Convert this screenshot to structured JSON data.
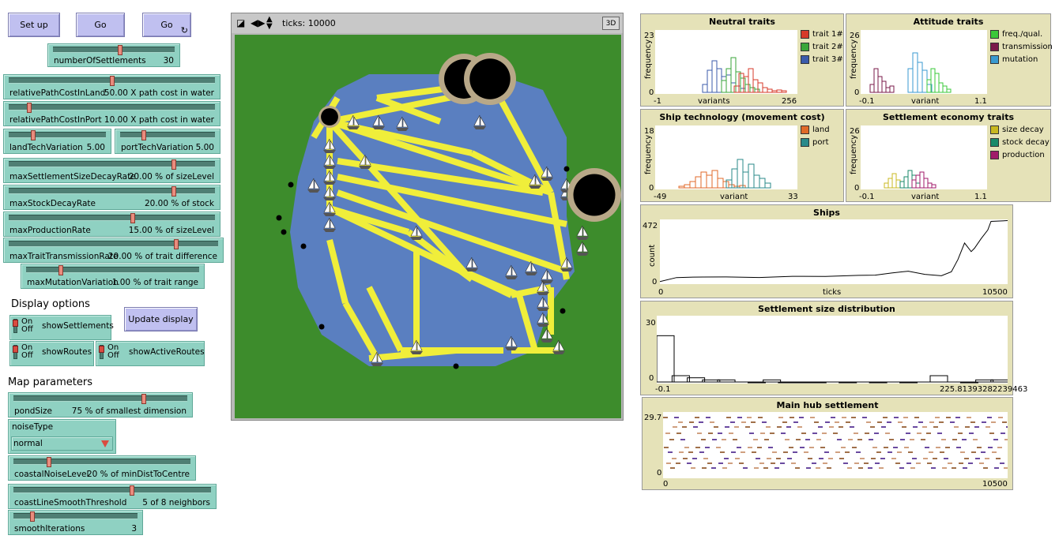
{
  "buttons": {
    "setup": "Set up",
    "go_once": "Go",
    "go_forever": "Go",
    "forever_glyph": "↻",
    "update_display": "Update display"
  },
  "sliders": [
    {
      "id": "numberOfSettlements",
      "label": "numberOfSettlements",
      "value": "30",
      "fraction": 0.55
    },
    {
      "id": "relativePathCostInLand",
      "label": "relativePathCostInLand",
      "value": "50.00 X path cost in water",
      "fraction": 0.5
    },
    {
      "id": "relativePathCostInPort",
      "label": "relativePathCostInPort",
      "value": "10.00 X path cost in water",
      "fraction": 0.1
    },
    {
      "id": "landTechVariation",
      "label": "landTechVariation",
      "value": "5.00",
      "fraction": 0.25
    },
    {
      "id": "portTechVariation",
      "label": "portTechVariation",
      "value": "5.00",
      "fraction": 0.25
    },
    {
      "id": "maxSettlementSizeDecayRate",
      "label": "maxSettlementSizeDecayRate",
      "value": "20.00 % of sizeLevel",
      "fraction": 0.8
    },
    {
      "id": "maxStockDecayRate",
      "label": "maxStockDecayRate",
      "value": "20.00 % of stock",
      "fraction": 0.8
    },
    {
      "id": "maxProductionRate",
      "label": "maxProductionRate",
      "value": "15.00 % of sizeLevel",
      "fraction": 0.6
    },
    {
      "id": "maxTraitTransmissionRate",
      "label": "maxTraitTransmissionRate",
      "value": "20.00 % of trait difference",
      "fraction": 0.8
    },
    {
      "id": "maxMutationVariation",
      "label": "maxMutationVariation",
      "value": "1.00 % of trait range",
      "fraction": 0.2
    },
    {
      "id": "pondSize",
      "label": "pondSize",
      "value": "75 % of smallest dimension",
      "fraction": 0.75
    },
    {
      "id": "coastalNoiseLevel",
      "label": "coastalNoiseLevel",
      "value": "20 % of minDistToCentre",
      "fraction": 0.2
    },
    {
      "id": "coastLineSmoothThreshold",
      "label": "coastLineSmoothThreshold",
      "value": "5 of 8 neighbors",
      "fraction": 0.6
    },
    {
      "id": "smoothIterations",
      "label": "smoothIterations",
      "value": "3",
      "fraction": 0.15
    }
  ],
  "sections": {
    "display_options": "Display options",
    "map_parameters": "Map parameters"
  },
  "switches": [
    {
      "id": "showSettlements",
      "label": "showSettlements",
      "on_text": "On",
      "off_text": "Off",
      "state": "on"
    },
    {
      "id": "showRoutes",
      "label": "showRoutes",
      "on_text": "On",
      "off_text": "Off",
      "state": "on"
    },
    {
      "id": "showActiveRoutes",
      "label": "showActiveRoutes",
      "on_text": "On",
      "off_text": "Off",
      "state": "on"
    }
  ],
  "chooser": {
    "label": "noiseType",
    "value": "normal"
  },
  "view": {
    "ticks_label": "ticks: 10000",
    "three_d": "3D"
  },
  "plots": {
    "neutral": {
      "title": "Neutral traits",
      "ylabel": "frequency",
      "xlabel": "variants",
      "ymax": "23",
      "ymin": "0",
      "xmin": "-1",
      "xmax": "256",
      "legend": [
        "trait 1#",
        "trait 2#",
        "trait 3#"
      ],
      "colors": [
        "#d73a2a",
        "#3aa63a",
        "#3b5bab"
      ]
    },
    "attitude": {
      "title": "Attitude traits",
      "ylabel": "frequency",
      "xlabel": "variant",
      "ymax": "26",
      "ymin": "0",
      "xmin": "-0.1",
      "xmax": "1.1",
      "legend": [
        "freq./qual.",
        "transmission",
        "mutation"
      ],
      "colors": [
        "#3ac93a",
        "#7a1a4a",
        "#3a9ad0"
      ]
    },
    "ship": {
      "title": "Ship technology (movement cost)",
      "ylabel": "frequency",
      "xlabel": "variant",
      "ymax": "18",
      "ymin": "0",
      "xmin": "-49",
      "xmax": "33",
      "legend": [
        "land",
        "port"
      ],
      "colors": [
        "#e06a28",
        "#2a8a8a"
      ]
    },
    "economy": {
      "title": "Settlement economy traits",
      "ylabel": "frequency",
      "xlabel": "variant",
      "ymax": "26",
      "ymin": "0",
      "xmin": "-0.1",
      "xmax": "1.1",
      "legend": [
        "size decay",
        "stock decay",
        "production"
      ],
      "colors": [
        "#c8b820",
        "#1a8a6a",
        "#a01a6a"
      ]
    },
    "ships": {
      "title": "Ships",
      "ylabel": "count",
      "xlabel": "ticks",
      "ymax": "472",
      "ymin": "0",
      "xmin": "0",
      "xmax": "10500"
    },
    "size_dist": {
      "title": "Settlement size distribution",
      "ymax": "30",
      "ymin": "0",
      "xmin": "-0.1",
      "xmax": "225.81393282239463"
    },
    "hub": {
      "title": "Main hub settlement",
      "ymax": "29.7",
      "ymin": "0",
      "xmin": "0",
      "xmax": "10500"
    }
  },
  "colors": {
    "widget": "#8fd1c2",
    "button": "#c0c0f0",
    "plot_bg": "#e5e2b8",
    "land": "#3d8c2c",
    "water": "#5a7fc0",
    "route": "#f0ee3a"
  },
  "chart_data": [
    {
      "type": "line",
      "title": "Ships",
      "xlabel": "ticks",
      "ylabel": "count",
      "xlim": [
        0,
        10500
      ],
      "ylim": [
        0,
        472
      ],
      "x": [
        0,
        500,
        1000,
        2000,
        3000,
        4000,
        5000,
        6000,
        6500,
        7000,
        7500,
        8000,
        8500,
        8800,
        9000,
        9200,
        9400,
        9500,
        9700,
        9900,
        10000,
        10500
      ],
      "series": [
        {
          "values": [
            10,
            35,
            45,
            40,
            42,
            45,
            50,
            52,
            60,
            70,
            90,
            60,
            55,
            80,
            180,
            300,
            240,
            260,
            340,
            400,
            472,
            472
          ]
        }
      ]
    },
    {
      "type": "bar",
      "title": "Settlement size distribution",
      "xlim": [
        -0.1,
        225.81393282239463
      ],
      "ylim": [
        0,
        30
      ],
      "x": [
        -0.1,
        10,
        20,
        30,
        40,
        60,
        70,
        80,
        90,
        100,
        120,
        140,
        160,
        180,
        200,
        210,
        220
      ],
      "values": [
        22,
        3,
        2,
        1,
        1,
        0,
        1,
        0,
        0,
        0,
        0,
        0,
        0,
        3,
        0,
        1,
        1
      ]
    },
    {
      "type": "scatter",
      "title": "Main hub settlement",
      "xlim": [
        0,
        10500
      ],
      "ylim": [
        0,
        29.7
      ],
      "series": [
        {
          "values": [
            29,
            27,
            25,
            20,
            18,
            15,
            14,
            10,
            5,
            2,
            20,
            15
          ]
        }
      ]
    }
  ]
}
